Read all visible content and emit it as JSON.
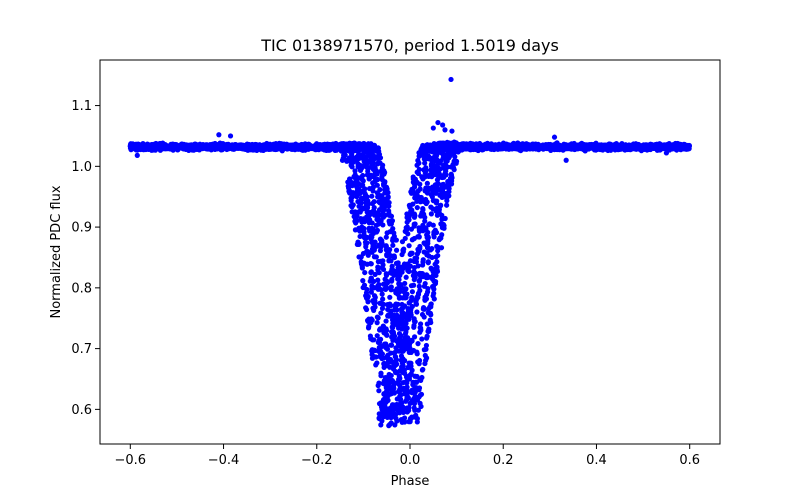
{
  "chart_data": {
    "type": "scatter",
    "title": "TIC 0138971570, period 1.5019 days",
    "xlabel": "Phase",
    "ylabel": "Normalized PDC flux",
    "xlim": [
      -0.665,
      0.665
    ],
    "ylim": [
      0.543,
      1.175
    ],
    "xticks": [
      -0.6,
      -0.4,
      -0.2,
      0.0,
      0.2,
      0.4,
      0.6
    ],
    "xtick_labels": [
      "−0.6",
      "−0.4",
      "−0.2",
      "0.0",
      "0.2",
      "0.4",
      "0.6"
    ],
    "yticks": [
      0.6,
      0.7,
      0.8,
      0.9,
      1.0,
      1.1
    ],
    "ytick_labels": [
      "0.6",
      "0.7",
      "0.8",
      "0.9",
      "1.0",
      "1.1"
    ],
    "grid": false,
    "legend": "none",
    "marker_color": "#0000ff",
    "series": [
      {
        "baseline": 1.032,
        "phase_range": [
          -0.6,
          0.6
        ],
        "eclipse_center": -0.03,
        "eclipse_minimum_flux": 0.575,
        "eclipse_halfwidth": 0.09,
        "envelope_samples": [
          {
            "x": -0.14,
            "y": 1.032
          },
          {
            "x": -0.12,
            "y": 0.98
          },
          {
            "x": -0.1,
            "y": 0.87
          },
          {
            "x": -0.08,
            "y": 0.74
          },
          {
            "x": -0.06,
            "y": 0.62
          },
          {
            "x": -0.05,
            "y": 0.58
          },
          {
            "x": -0.03,
            "y": 0.58
          },
          {
            "x": -0.01,
            "y": 0.64
          },
          {
            "x": 0.01,
            "y": 0.78
          },
          {
            "x": 0.03,
            "y": 0.93
          },
          {
            "x": 0.05,
            "y": 1.02
          },
          {
            "x": 0.07,
            "y": 1.032
          }
        ],
        "outliers": [
          {
            "x": 0.088,
            "y": 1.143
          },
          {
            "x": 0.06,
            "y": 1.072
          },
          {
            "x": 0.07,
            "y": 1.068
          },
          {
            "x": 0.05,
            "y": 1.063
          },
          {
            "x": 0.075,
            "y": 1.06
          },
          {
            "x": 0.09,
            "y": 1.058
          },
          {
            "x": -0.41,
            "y": 1.052
          },
          {
            "x": -0.385,
            "y": 1.05
          },
          {
            "x": 0.31,
            "y": 1.048
          },
          {
            "x": 0.335,
            "y": 1.01
          },
          {
            "x": -0.585,
            "y": 1.018
          },
          {
            "x": 0.55,
            "y": 1.022
          }
        ]
      }
    ]
  }
}
